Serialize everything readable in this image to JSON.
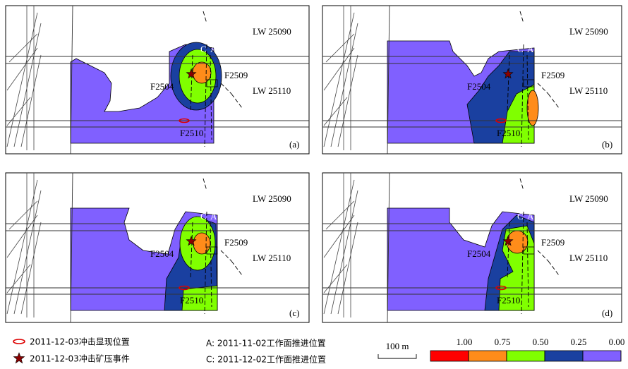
{
  "panels": [
    {
      "label": "(a)",
      "roadways": [
        "LW 25090",
        "LW 25110"
      ],
      "faults": [
        "F2504",
        "F2509",
        "F2510"
      ],
      "face_positions": [
        "C",
        "A"
      ]
    },
    {
      "label": "(b)",
      "roadways": [
        "LW 25090",
        "LW 25110"
      ],
      "faults": [
        "F2504",
        "F2509",
        "F2510"
      ],
      "face_positions": [
        "C",
        "A"
      ]
    },
    {
      "label": "(c)",
      "roadways": [
        "LW 25090",
        "LW 25110"
      ],
      "faults": [
        "F2504",
        "F2509",
        "F2510"
      ],
      "face_positions": [
        "C",
        "A"
      ]
    },
    {
      "label": "(d)",
      "roadways": [
        "LW 25090",
        "LW 25110"
      ],
      "faults": [
        "F2504",
        "F2509",
        "F2510"
      ],
      "face_positions": [
        "C",
        "A"
      ]
    }
  ],
  "legend": {
    "burst_site": "2011-12-03冲击显现位置",
    "burst_event": "2011-12-03冲击矿压事件",
    "face_a": "A: 2011-11-02工作面推进位置",
    "face_c": "C: 2011-12-02工作面推进位置",
    "scale": "100 m",
    "colorbar": {
      "colors": [
        "#ff0000",
        "#ff8c1a",
        "#80ff00",
        "#1a40a0",
        "#8060ff"
      ],
      "ticks": [
        {
          "value": 1,
          "label": "1.00"
        },
        {
          "value": 0.75,
          "label": "0.75"
        },
        {
          "value": 0.5,
          "label": "0.50"
        },
        {
          "value": 0.25,
          "label": "0.25"
        },
        {
          "value": 0,
          "label": "0.00"
        }
      ]
    }
  }
}
